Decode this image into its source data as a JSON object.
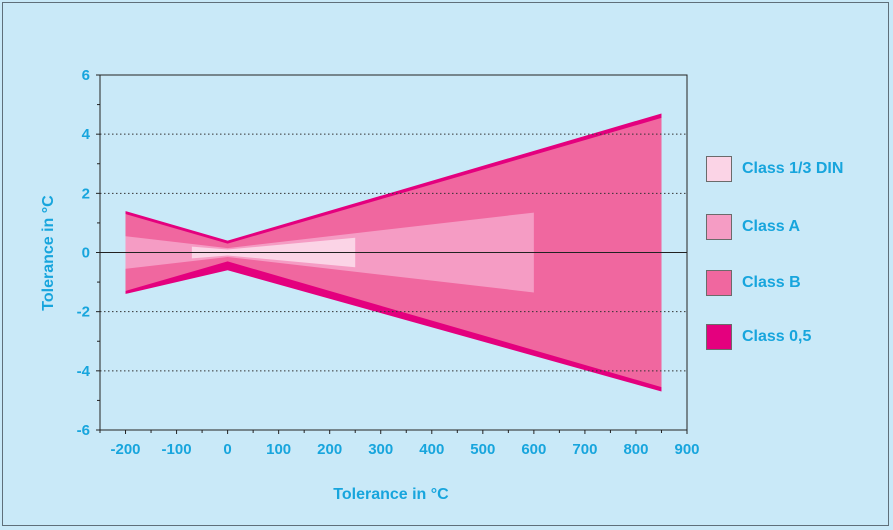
{
  "chart_data": {
    "type": "area",
    "xlabel": "Tolerance in °C",
    "ylabel": "Tolerance in °C",
    "xlim": [
      -250,
      900
    ],
    "ylim": [
      -6,
      6
    ],
    "x_ticks": [
      -200,
      -100,
      0,
      100,
      200,
      300,
      400,
      500,
      600,
      700,
      800,
      900
    ],
    "y_ticks": [
      -6,
      -4,
      -2,
      0,
      2,
      4,
      6
    ],
    "grid": "dotted horizontal lines at y = -4, -2, 2, 4",
    "legend_position": "right",
    "series": [
      {
        "name": "Class 0,5",
        "color": "#e4007e",
        "x": [
          -200,
          0,
          850
        ],
        "upper": [
          1.4,
          0.4,
          4.7
        ],
        "lower": [
          -1.4,
          -0.6,
          -4.7
        ]
      },
      {
        "name": "Class B",
        "color": "#f0679f",
        "x": [
          -200,
          0,
          850
        ],
        "upper": [
          1.3,
          0.3,
          4.55
        ],
        "lower": [
          -1.3,
          -0.3,
          -4.55
        ]
      },
      {
        "name": "Class A",
        "color": "#f59cc4",
        "x": [
          -200,
          0,
          600
        ],
        "upper": [
          0.55,
          0.15,
          1.35
        ],
        "lower": [
          -0.55,
          -0.15,
          -1.35
        ]
      },
      {
        "name": "Class 1/3 DIN",
        "color": "#fbd4e6",
        "x": [
          -70,
          0,
          250
        ],
        "upper": [
          0.2,
          0.1,
          0.5
        ],
        "lower": [
          -0.2,
          -0.1,
          -0.5
        ]
      }
    ]
  },
  "legend": {
    "items": [
      {
        "label": "Class 1/3 DIN",
        "color": "#fbd4e6"
      },
      {
        "label": "Class A",
        "color": "#f59cc4"
      },
      {
        "label": "Class B",
        "color": "#f0679f"
      },
      {
        "label": "Class 0,5",
        "color": "#e4007e"
      }
    ]
  }
}
